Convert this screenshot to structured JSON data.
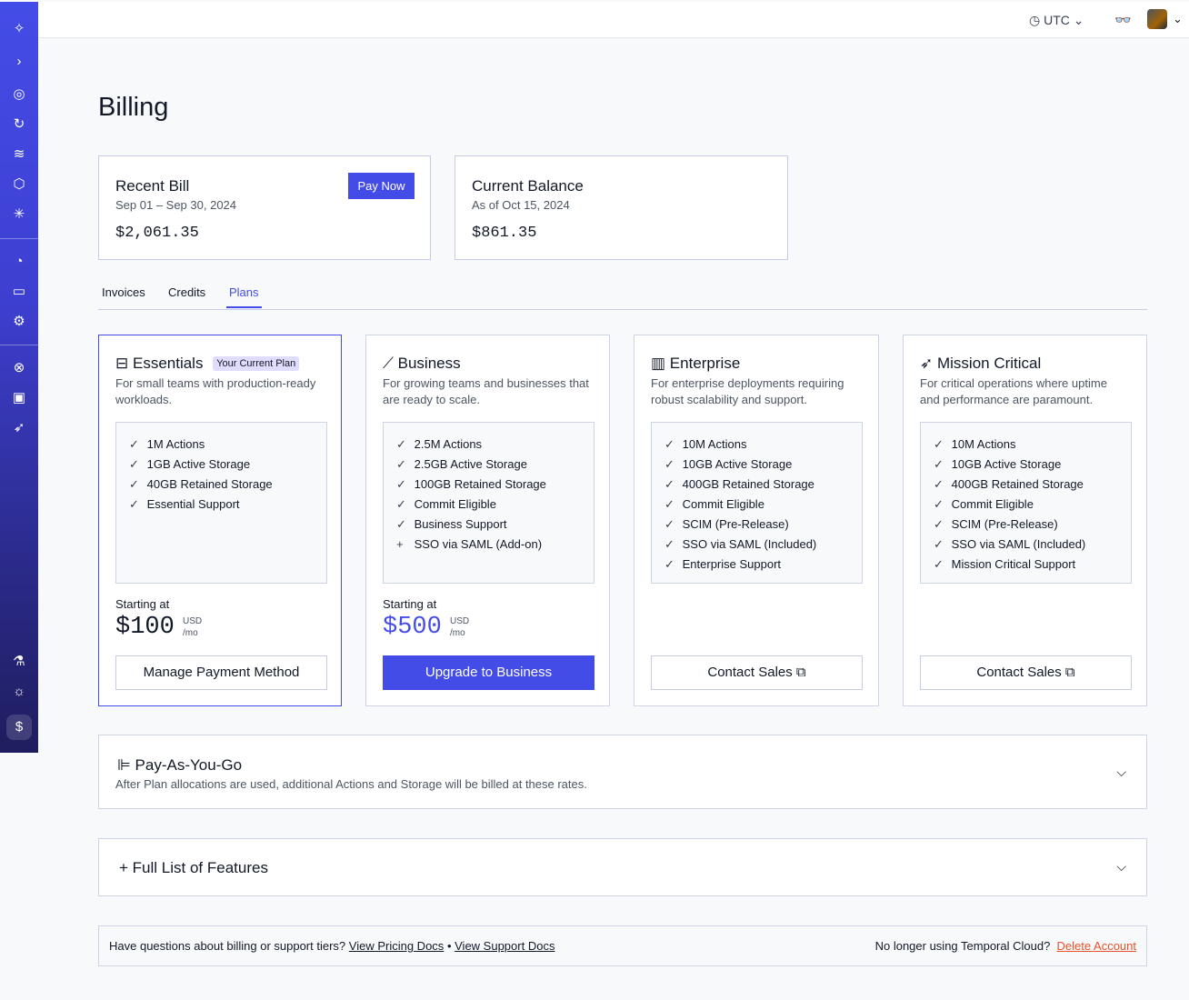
{
  "sidebar": {
    "icons": [
      "temporal-logo-icon",
      "expand-icon",
      "namespaces-icon",
      "workflows-icon",
      "schedules-icon",
      "batch-icon",
      "nexus-icon",
      "usage-icon",
      "billing-icon",
      "settings-icon",
      "support-icon",
      "feedback-icon",
      "deploy-icon",
      "labs-icon",
      "theme-icon",
      "billing-active-icon"
    ]
  },
  "topbar": {
    "timezone": "UTC",
    "timezone_icon": "clock-icon",
    "glasses_icon": "data-encoder-icon"
  },
  "page": {
    "title": "Billing"
  },
  "recent_bill": {
    "title": "Recent Bill",
    "period": "Sep 01 – Sep 30, 2024",
    "amount": "$2,061.35",
    "pay_now": "Pay Now"
  },
  "current_balance": {
    "title": "Current Balance",
    "as_of": "As of Oct 15, 2024",
    "amount": "$861.35"
  },
  "tabs": [
    {
      "label": "Invoices"
    },
    {
      "label": "Credits"
    },
    {
      "label": "Plans",
      "active": true
    }
  ],
  "plans": [
    {
      "name": "Essentials",
      "badge": "Your Current Plan",
      "icon": "toolbox-icon",
      "desc": "For small teams with production-ready workloads.",
      "features": [
        {
          "m": "✓",
          "t": "1M Actions"
        },
        {
          "m": "✓",
          "t": "1GB Active Storage"
        },
        {
          "m": "✓",
          "t": "40GB Retained Storage"
        },
        {
          "m": "✓",
          "t": "Essential Support"
        }
      ],
      "starting": "Starting at",
      "price": "$100",
      "currency": "USD",
      "per": "/mo",
      "button": "Manage Payment Method"
    },
    {
      "name": "Business",
      "icon": "chart-line-icon",
      "desc": "For growing teams and businesses that are ready to scale.",
      "features": [
        {
          "m": "✓",
          "t": "2.5M Actions"
        },
        {
          "m": "✓",
          "t": "2.5GB Active Storage"
        },
        {
          "m": "✓",
          "t": "100GB Retained Storage"
        },
        {
          "m": "✓",
          "t": "Commit Eligible"
        },
        {
          "m": "✓",
          "t": "Business Support"
        },
        {
          "m": "+",
          "t": "SSO via SAML (Add-on)"
        }
      ],
      "starting": "Starting at",
      "price": "$500",
      "currency": "USD",
      "per": "/mo",
      "button": "Upgrade to Business"
    },
    {
      "name": "Enterprise",
      "icon": "building-icon",
      "desc": "For enterprise deployments requiring robust scalability and support.",
      "features": [
        {
          "m": "✓",
          "t": "10M Actions"
        },
        {
          "m": "✓",
          "t": "10GB Active Storage"
        },
        {
          "m": "✓",
          "t": "400GB Retained Storage"
        },
        {
          "m": "✓",
          "t": "Commit Eligible"
        },
        {
          "m": "✓",
          "t": "SCIM (Pre-Release)"
        },
        {
          "m": "✓",
          "t": "SSO via SAML (Included)"
        },
        {
          "m": "✓",
          "t": "Enterprise Support"
        }
      ],
      "button": "Contact Sales"
    },
    {
      "name": "Mission Critical",
      "icon": "rocket-icon",
      "desc": "For critical operations where uptime and performance are paramount.",
      "features": [
        {
          "m": "✓",
          "t": "10M Actions"
        },
        {
          "m": "✓",
          "t": "10GB Active Storage"
        },
        {
          "m": "✓",
          "t": "400GB Retained Storage"
        },
        {
          "m": "✓",
          "t": "Commit Eligible"
        },
        {
          "m": "✓",
          "t": "SCIM (Pre-Release)"
        },
        {
          "m": "✓",
          "t": "SSO via SAML (Included)"
        },
        {
          "m": "✓",
          "t": "Mission Critical Support"
        }
      ],
      "button": "Contact Sales"
    }
  ],
  "payg": {
    "title": "Pay-As-You-Go",
    "desc": "After Plan allocations are used, additional Actions and Storage will be billed at these rates."
  },
  "features_list": {
    "title": "Full List of Features"
  },
  "footer": {
    "question": "Have questions about billing or support tiers?",
    "pricing_docs": "View Pricing Docs",
    "sep": "•",
    "support_docs": "View Support Docs",
    "no_longer": "No longer using Temporal Cloud?",
    "delete": "Delete Account"
  },
  "colors": {
    "accent": "#444ce7",
    "danger": "#e5532b",
    "badge": "#e0dcfb"
  }
}
